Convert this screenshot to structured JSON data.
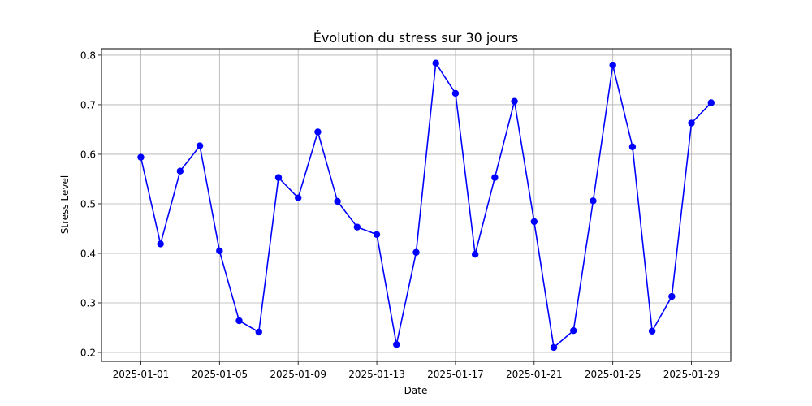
{
  "chart_data": {
    "type": "line",
    "title": "Évolution du stress sur 30 jours",
    "xlabel": "Date",
    "ylabel": "Stress Level",
    "x": [
      "2025-01-01",
      "2025-01-02",
      "2025-01-03",
      "2025-01-04",
      "2025-01-05",
      "2025-01-06",
      "2025-01-07",
      "2025-01-08",
      "2025-01-09",
      "2025-01-10",
      "2025-01-11",
      "2025-01-12",
      "2025-01-13",
      "2025-01-14",
      "2025-01-15",
      "2025-01-16",
      "2025-01-17",
      "2025-01-18",
      "2025-01-19",
      "2025-01-20",
      "2025-01-21",
      "2025-01-22",
      "2025-01-23",
      "2025-01-24",
      "2025-01-25",
      "2025-01-26",
      "2025-01-27",
      "2025-01-28",
      "2025-01-29",
      "2025-01-30"
    ],
    "series": [
      {
        "values": [
          0.594,
          0.419,
          0.566,
          0.617,
          0.405,
          0.264,
          0.241,
          0.553,
          0.512,
          0.645,
          0.505,
          0.453,
          0.438,
          0.216,
          0.402,
          0.784,
          0.723,
          0.398,
          0.553,
          0.707,
          0.464,
          0.21,
          0.244,
          0.506,
          0.78,
          0.615,
          0.243,
          0.313,
          0.663,
          0.704
        ],
        "color": "#0000ff",
        "marker": "circle"
      }
    ],
    "xticks": [
      "2025-01-01",
      "2025-01-05",
      "2025-01-09",
      "2025-01-13",
      "2025-01-17",
      "2025-01-21",
      "2025-01-25",
      "2025-01-29"
    ],
    "yticks": [
      "0.2",
      "0.3",
      "0.4",
      "0.5",
      "0.6",
      "0.7",
      "0.8"
    ],
    "xlim": [
      "2024-12-30",
      "2025-01-31"
    ],
    "ylim": [
      0.182,
      0.813
    ],
    "grid": true,
    "legend": "none"
  }
}
